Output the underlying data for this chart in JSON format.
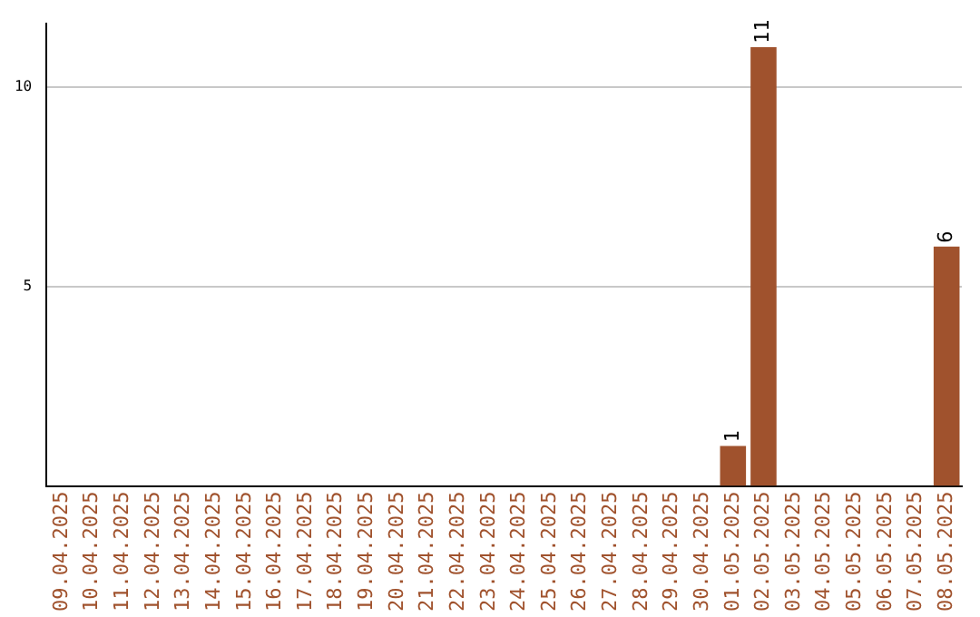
{
  "chart_data": {
    "type": "bar",
    "categories": [
      "09.04.2025",
      "10.04.2025",
      "11.04.2025",
      "12.04.2025",
      "13.04.2025",
      "14.04.2025",
      "15.04.2025",
      "16.04.2025",
      "17.04.2025",
      "18.04.2025",
      "19.04.2025",
      "20.04.2025",
      "21.04.2025",
      "22.04.2025",
      "23.04.2025",
      "24.04.2025",
      "25.04.2025",
      "26.04.2025",
      "27.04.2025",
      "28.04.2025",
      "29.04.2025",
      "30.04.2025",
      "01.05.2025",
      "02.05.2025",
      "03.05.2025",
      "04.05.2025",
      "05.05.2025",
      "06.05.2025",
      "07.05.2025",
      "08.05.2025"
    ],
    "values": [
      0,
      0,
      0,
      0,
      0,
      0,
      0,
      0,
      0,
      0,
      0,
      0,
      0,
      0,
      0,
      0,
      0,
      0,
      0,
      0,
      0,
      0,
      1,
      11,
      0,
      0,
      0,
      0,
      0,
      6
    ],
    "value_labels": [
      null,
      null,
      null,
      null,
      null,
      null,
      null,
      null,
      null,
      null,
      null,
      null,
      null,
      null,
      null,
      null,
      null,
      null,
      null,
      null,
      null,
      null,
      "1",
      "11",
      null,
      null,
      null,
      null,
      null,
      "6"
    ],
    "color": "#a0522d",
    "ylim": [
      0,
      11.6
    ],
    "yticks": [
      5,
      10
    ],
    "grid": "y",
    "legend": false
  }
}
